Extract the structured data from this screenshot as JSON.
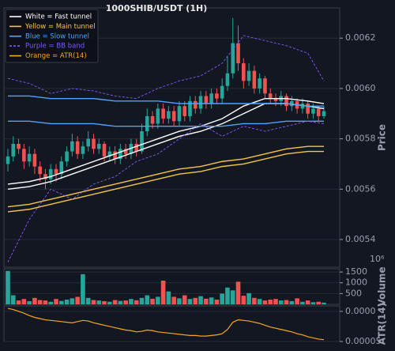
{
  "chart_data": [
    {
      "type": "candlestick",
      "title": "1000SHIB/USDT (1H)",
      "y_label": "Price",
      "up_color": "#26a69a",
      "down_color": "#ef5350",
      "grid": true,
      "ylim": [
        0.00529,
        0.00632
      ],
      "yticks": [
        0.0054,
        0.0056,
        0.0058,
        {
          "value": 0.006,
          "label": "0.0060"
        },
        0.0062
      ],
      "open": [
        0.0057,
        0.00573,
        0.00578,
        0.00576,
        0.00571,
        0.00574,
        0.00569,
        0.00566,
        0.00564,
        0.00568,
        0.00566,
        0.00571,
        0.00575,
        0.00579,
        0.00574,
        0.00577,
        0.0058,
        0.00576,
        0.00578,
        0.00573,
        0.00575,
        0.00572,
        0.00576,
        0.00574,
        0.00578,
        0.00575,
        0.00583,
        0.00589,
        0.00586,
        0.00592,
        0.00588,
        0.00591,
        0.00587,
        0.00593,
        0.00589,
        0.00595,
        0.00592,
        0.00597,
        0.00594,
        0.00598,
        0.00596,
        0.00601,
        0.00606,
        0.00618,
        0.0061,
        0.00603,
        0.00607,
        0.006,
        0.00604,
        0.00598,
        0.00596,
        0.00595,
        0.00597,
        0.00593,
        0.00595,
        0.00592,
        0.00594,
        0.0059,
        0.00592,
        0.00589
      ],
      "high": [
        0.00576,
        0.00581,
        0.0058,
        0.00578,
        0.00577,
        0.00576,
        0.00571,
        0.00568,
        0.0057,
        0.0057,
        0.00573,
        0.00577,
        0.00582,
        0.00581,
        0.00579,
        0.00583,
        0.00582,
        0.0058,
        0.00579,
        0.00577,
        0.00577,
        0.00578,
        0.00578,
        0.0058,
        0.0058,
        0.00586,
        0.00592,
        0.00591,
        0.00594,
        0.00594,
        0.00593,
        0.00593,
        0.00595,
        0.00595,
        0.00597,
        0.00597,
        0.00599,
        0.00599,
        0.006,
        0.006,
        0.00604,
        0.00613,
        0.00628,
        0.00625,
        0.00612,
        0.0061,
        0.00609,
        0.00606,
        0.00605,
        0.006,
        0.00598,
        0.00599,
        0.00598,
        0.00597,
        0.00596,
        0.00596,
        0.00595,
        0.00594,
        0.00593,
        0.00593
      ],
      "low": [
        0.00567,
        0.00571,
        0.00574,
        0.00568,
        0.00569,
        0.00566,
        0.00563,
        0.0056,
        0.00562,
        0.00563,
        0.00564,
        0.00569,
        0.00573,
        0.00572,
        0.00572,
        0.00575,
        0.00574,
        0.00574,
        0.00571,
        0.00571,
        0.0057,
        0.0057,
        0.00572,
        0.00572,
        0.00573,
        0.00574,
        0.00581,
        0.00584,
        0.00584,
        0.00586,
        0.00586,
        0.00585,
        0.00585,
        0.00587,
        0.00587,
        0.0059,
        0.0059,
        0.00592,
        0.00592,
        0.00594,
        0.00594,
        0.00599,
        0.00604,
        0.00607,
        0.006,
        0.00601,
        0.00598,
        0.00598,
        0.00596,
        0.00594,
        0.00593,
        0.00593,
        0.00591,
        0.00591,
        0.0059,
        0.0059,
        0.00588,
        0.00588,
        0.00587,
        0.00588
      ],
      "close": [
        0.00573,
        0.00578,
        0.00576,
        0.00571,
        0.00574,
        0.00569,
        0.00566,
        0.00564,
        0.00568,
        0.00566,
        0.00571,
        0.00575,
        0.00579,
        0.00574,
        0.00577,
        0.0058,
        0.00576,
        0.00578,
        0.00573,
        0.00575,
        0.00572,
        0.00576,
        0.00574,
        0.00578,
        0.00575,
        0.00583,
        0.00589,
        0.00586,
        0.00592,
        0.00588,
        0.00591,
        0.00587,
        0.00593,
        0.00589,
        0.00595,
        0.00592,
        0.00597,
        0.00594,
        0.00598,
        0.00596,
        0.00601,
        0.00606,
        0.00618,
        0.0061,
        0.00603,
        0.00607,
        0.006,
        0.00604,
        0.00598,
        0.00596,
        0.00595,
        0.00597,
        0.00593,
        0.00595,
        0.00592,
        0.00594,
        0.0059,
        0.00592,
        0.00589,
        0.00591
      ],
      "line_x": [
        0,
        4,
        8,
        12,
        16,
        20,
        24,
        28,
        32,
        36,
        40,
        44,
        48,
        52,
        56,
        59
      ],
      "lines": [
        {
          "color": "#ffffff",
          "dashed": false,
          "values": [
            0.00562,
            0.00563,
            0.00565,
            0.00568,
            0.00571,
            0.00574,
            0.00577,
            0.0058,
            0.00583,
            0.00585,
            0.00588,
            0.00593,
            0.00596,
            0.00596,
            0.00595,
            0.00594
          ]
        },
        {
          "color": "#ffffff",
          "dashed": false,
          "values": [
            0.0056,
            0.00561,
            0.00563,
            0.00566,
            0.00569,
            0.00572,
            0.00575,
            0.00578,
            0.00581,
            0.00583,
            0.00586,
            0.0059,
            0.00594,
            0.00594,
            0.00593,
            0.00592
          ]
        },
        {
          "color": "#f5c542",
          "dashed": false,
          "values": [
            0.00553,
            0.00554,
            0.00556,
            0.00558,
            0.0056,
            0.00562,
            0.00564,
            0.00566,
            0.00568,
            0.00569,
            0.00571,
            0.00572,
            0.00574,
            0.00576,
            0.00577,
            0.00577
          ]
        },
        {
          "color": "#f5c542",
          "dashed": false,
          "values": [
            0.00551,
            0.00552,
            0.00554,
            0.00556,
            0.00558,
            0.0056,
            0.00562,
            0.00564,
            0.00566,
            0.00567,
            0.00569,
            0.0057,
            0.00572,
            0.00574,
            0.00575,
            0.00575
          ]
        },
        {
          "color": "#4da3ff",
          "dashed": false,
          "values": [
            0.00597,
            0.00597,
            0.00596,
            0.00596,
            0.00596,
            0.00595,
            0.00595,
            0.00595,
            0.00594,
            0.00594,
            0.00594,
            0.00594,
            0.00594,
            0.00594,
            0.00593,
            0.00593
          ]
        },
        {
          "color": "#4da3ff",
          "dashed": false,
          "values": [
            0.00587,
            0.00587,
            0.00586,
            0.00586,
            0.00586,
            0.00585,
            0.00585,
            0.00585,
            0.00585,
            0.00585,
            0.00585,
            0.00586,
            0.00586,
            0.00587,
            0.00587,
            0.00587
          ]
        },
        {
          "color": "#7b5cff",
          "dashed": true,
          "values": [
            0.00604,
            0.00602,
            0.00598,
            0.006,
            0.00599,
            0.00597,
            0.00596,
            0.006,
            0.00603,
            0.00605,
            0.0061,
            0.00621,
            0.00619,
            0.00617,
            0.00614,
            0.00603
          ]
        },
        {
          "color": "#7b5cff",
          "dashed": true,
          "values": [
            0.00531,
            0.00548,
            0.0056,
            0.00556,
            0.00562,
            0.00565,
            0.00571,
            0.00574,
            0.0058,
            0.00586,
            0.00581,
            0.00585,
            0.00583,
            0.00585,
            0.00587,
            0.00586
          ]
        }
      ],
      "legend": [
        {
          "name": "White = Fast tunnel",
          "color": "#ffffff",
          "dashed": false
        },
        {
          "name": "Yellow = Main tunnel",
          "color": "#f5c542",
          "dashed": false
        },
        {
          "name": "Blue = Slow tunnel",
          "color": "#4da3ff",
          "dashed": false
        },
        {
          "name": "Purple = BB band",
          "color": "#7b5cff",
          "dashed": true
        },
        {
          "name": "Orange = ATR(14)",
          "color": "#f5a623",
          "dashed": false
        }
      ]
    },
    {
      "type": "bar",
      "y_label": "Volume",
      "offset_label": "10⁶",
      "grid": true,
      "ylim": [
        0,
        1650
      ],
      "yticks": [
        500,
        1000,
        1500
      ],
      "values": [
        1550,
        420,
        180,
        250,
        150,
        300,
        200,
        180,
        120,
        250,
        160,
        220,
        280,
        350,
        1400,
        300,
        200,
        180,
        150,
        120,
        200,
        160,
        180,
        250,
        190,
        300,
        420,
        260,
        350,
        1100,
        600,
        350,
        280,
        420,
        250,
        300,
        380,
        260,
        320,
        220,
        500,
        780,
        650,
        1050,
        400,
        520,
        300,
        250,
        180,
        220,
        250,
        180,
        200,
        150,
        280,
        120,
        180,
        100,
        120,
        80
      ]
    },
    {
      "type": "line",
      "y_label": "ATR(14)",
      "color": "#f5a623",
      "grid": true,
      "ylim": [
        5e-05,
        0.000109
      ],
      "yticks": [
        {
          "value": 0.0001,
          "label": "0.0000"
        },
        5e-05
      ],
      "values": [
        0.000105,
        0.000103,
        0.0001,
        9.7e-05,
        9.3e-05,
        9e-05,
        8.8e-05,
        8.6e-05,
        8.5e-05,
        8.4e-05,
        8.3e-05,
        8.2e-05,
        8.1e-05,
        8.3e-05,
        8.5e-05,
        8.4e-05,
        8.1e-05,
        7.9e-05,
        7.7e-05,
        7.5e-05,
        7.3e-05,
        7.1e-05,
        6.9e-05,
        6.8e-05,
        6.6e-05,
        6.7e-05,
        6.9e-05,
        6.8e-05,
        6.6e-05,
        6.5e-05,
        6.4e-05,
        6.3e-05,
        6.2e-05,
        6.1e-05,
        6e-05,
        6e-05,
        5.9e-05,
        5.9e-05,
        6e-05,
        6.1e-05,
        6.3e-05,
        7e-05,
        8.2e-05,
        8.6e-05,
        8.5e-05,
        8.4e-05,
        8.2e-05,
        8e-05,
        7.7e-05,
        7.4e-05,
        7.2e-05,
        7e-05,
        6.8e-05,
        6.6e-05,
        6.3e-05,
        6.1e-05,
        5.8e-05,
        5.6e-05,
        5.4e-05,
        5.3e-05
      ]
    }
  ]
}
